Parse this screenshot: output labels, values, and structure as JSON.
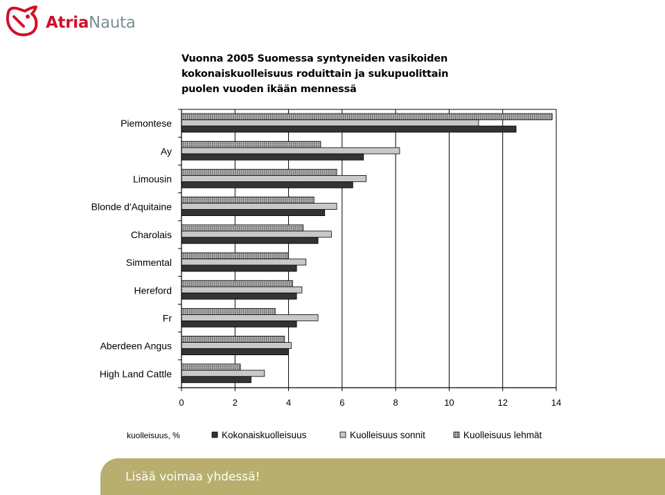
{
  "brand": {
    "name_part1": "Atria",
    "name_part2": "Nauta",
    "colors": {
      "red": "#d0102a",
      "gray": "#7d8c96"
    }
  },
  "banner": {
    "text": "Lisää voimaa yhdessä!",
    "color": "#b8ae6e"
  },
  "chart_data": {
    "type": "bar",
    "orientation": "horizontal",
    "title": "Vuonna 2005 Suomessa syntyneiden vasikoiden kokonaiskuolleisuus roduittain ja sukupuolittain puolen vuoden ikään mennessä",
    "title_lines": [
      "Vuonna 2005 Suomessa syntyneiden vasikoiden",
      "kokonaiskuolleisuus roduittain ja sukupuolittain",
      "puolen vuoden ikään mennessä"
    ],
    "categories": [
      "Piemontese",
      "Ay",
      "Limousin",
      "Blonde d'Aquitaine",
      "Charolais",
      "Simmental",
      "Hereford",
      "Fr",
      "Aberdeen Angus",
      "High Land Cattle"
    ],
    "series": [
      {
        "name": "Kokonaiskuolleisuus",
        "color": "#333333",
        "pattern": "solid",
        "values": [
          12.5,
          6.8,
          6.4,
          5.35,
          5.1,
          4.3,
          4.3,
          4.3,
          4.0,
          2.6
        ]
      },
      {
        "name": "Kuolleisuus sonnit",
        "color": "#c8c8c8",
        "pattern": "solid",
        "values": [
          11.1,
          8.15,
          6.9,
          5.8,
          5.6,
          4.65,
          4.5,
          5.1,
          4.1,
          3.1
        ]
      },
      {
        "name": "Kuolleisuus lehmät",
        "color": "#999999",
        "pattern": "dotted",
        "values": [
          13.85,
          5.2,
          5.8,
          4.95,
          4.55,
          4.0,
          4.15,
          3.5,
          3.85,
          2.2
        ]
      }
    ],
    "xlim": [
      0,
      14
    ],
    "xticks": [
      "0",
      "2",
      "4",
      "6",
      "8",
      "10",
      "12",
      "14"
    ],
    "xlabel": "",
    "legend_prefix": "kuolleisuus, %",
    "legend_position": "bottom",
    "grid": "vertical"
  }
}
